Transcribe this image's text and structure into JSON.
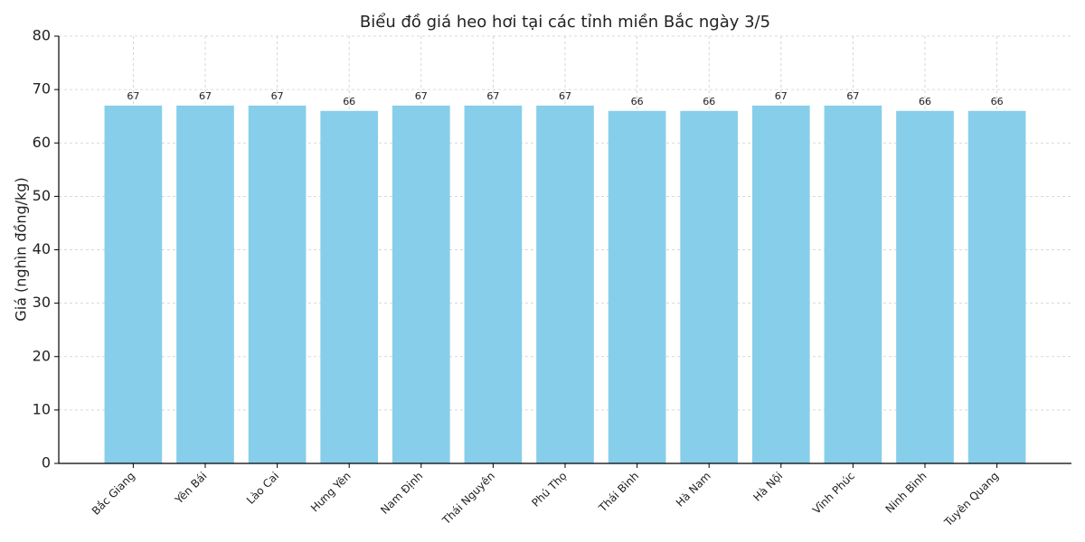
{
  "chart_data": {
    "type": "bar",
    "title": "Biểu đồ giá heo hơi tại các tỉnh miền Bắc ngày 3/5",
    "y_label": "Giá (nghìn đồng/kg)",
    "categories": [
      "Bắc Giang",
      "Yên Bái",
      "Lào Cai",
      "Hưng Yên",
      "Nam Định",
      "Thái Nguyên",
      "Phú Thọ",
      "Thái Bình",
      "Hà Nam",
      "Hà Nội",
      "Vĩnh Phúc",
      "Ninh Bình",
      "Tuyên Quang"
    ],
    "values": [
      67,
      67,
      67,
      66,
      67,
      67,
      67,
      66,
      66,
      67,
      67,
      66,
      66
    ],
    "color": "#87ceeb",
    "ylim": [
      0,
      80
    ],
    "yticks": [
      0,
      10,
      20,
      30,
      40,
      50,
      60,
      70,
      80
    ],
    "grid": true
  }
}
